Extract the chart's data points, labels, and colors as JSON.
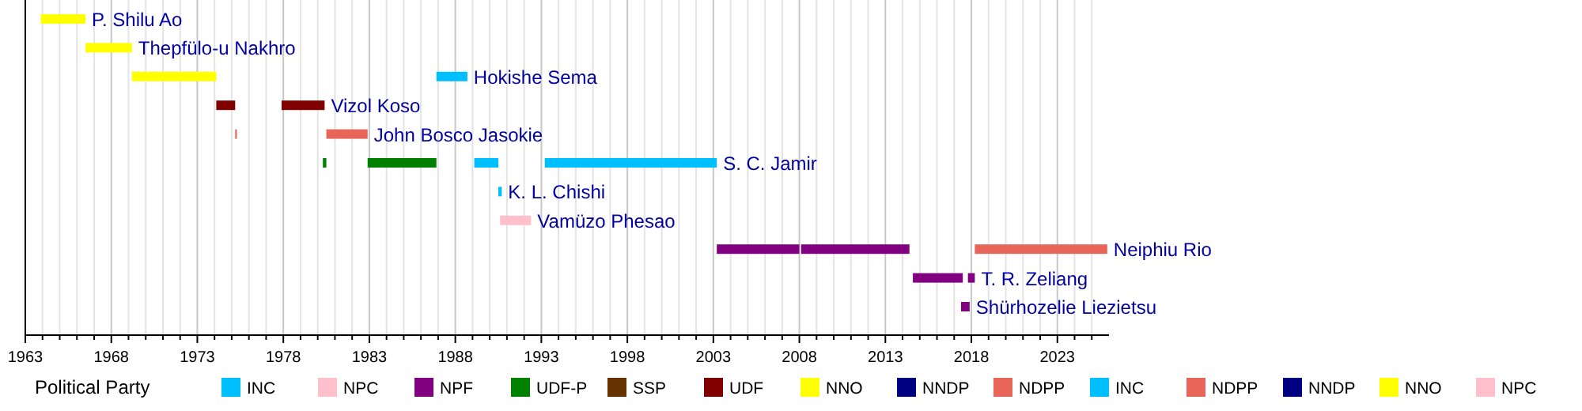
{
  "chart_data": {
    "type": "bar",
    "orientation": "horizontal",
    "legend": "bottom",
    "legend_title": "Political Party",
    "grid": "x",
    "categories": [
      "P. Shilu Ao",
      "Thepfülo-u Nakhro",
      "Hokishe Sema",
      "Vizol Koso",
      "John Bosco Jasokie",
      "S. C. Jamir",
      "K. L. Chishi",
      "Vamüzo Phesao",
      "Neiphiu Rio",
      "T. R. Zeliang",
      "Shürhozelie Liezietsu"
    ],
    "xlim": [
      1963,
      2026
    ],
    "xticks": [
      1963,
      {
        "value": 1964,
        "label": null
      },
      {
        "value": 1965,
        "label": null
      },
      {
        "value": 1966,
        "label": null
      },
      {
        "value": 1967,
        "label": null
      },
      1968,
      {
        "value": 1969,
        "label": null
      },
      {
        "value": 1970,
        "label": null
      },
      {
        "value": 1971,
        "label": null
      },
      {
        "value": 1972,
        "label": null
      },
      1973,
      {
        "value": 1974,
        "label": null
      },
      {
        "value": 1975,
        "label": null
      },
      {
        "value": 1976,
        "label": null
      },
      {
        "value": 1977,
        "label": null
      },
      1978,
      {
        "value": 1979,
        "label": null
      },
      {
        "value": 1980,
        "label": null
      },
      {
        "value": 1981,
        "label": null
      },
      {
        "value": 1982,
        "label": null
      },
      1983,
      {
        "value": 1984,
        "label": null
      },
      {
        "value": 1985,
        "label": null
      },
      {
        "value": 1986,
        "label": null
      },
      {
        "value": 1987,
        "label": null
      },
      1988,
      {
        "value": 1989,
        "label": null
      },
      {
        "value": 1990,
        "label": null
      },
      {
        "value": 1991,
        "label": null
      },
      {
        "value": 1992,
        "label": null
      },
      1993,
      {
        "value": 1994,
        "label": null
      },
      {
        "value": 1995,
        "label": null
      },
      {
        "value": 1996,
        "label": null
      },
      {
        "value": 1997,
        "label": null
      },
      1998,
      {
        "value": 1999,
        "label": null
      },
      {
        "value": 2000,
        "label": null
      },
      {
        "value": 2001,
        "label": null
      },
      {
        "value": 2002,
        "label": null
      },
      2003,
      {
        "value": 2004,
        "label": null
      },
      {
        "value": 2005,
        "label": null
      },
      {
        "value": 2006,
        "label": null
      },
      {
        "value": 2007,
        "label": null
      },
      2008,
      {
        "value": 2009,
        "label": null
      },
      {
        "value": 2010,
        "label": null
      },
      {
        "value": 2011,
        "label": null
      },
      {
        "value": 2012,
        "label": null
      },
      2013,
      {
        "value": 2014,
        "label": null
      },
      {
        "value": 2015,
        "label": null
      },
      {
        "value": 2016,
        "label": null
      },
      {
        "value": 2017,
        "label": null
      },
      2018,
      {
        "value": 2019,
        "label": null
      },
      {
        "value": 2020,
        "label": null
      },
      {
        "value": 2021,
        "label": null
      },
      {
        "value": 2022,
        "label": null
      },
      2023,
      {
        "value": 2024,
        "label": null
      },
      {
        "value": 2025,
        "label": null
      }
    ],
    "series": [
      {
        "name": "INC",
        "color": "#00bfff",
        "base": [
          null,
          null,
          1986.9,
          null,
          null,
          1989.1,
          1990.5,
          null,
          null,
          null,
          null
        ],
        "values": [
          null,
          null,
          1.8,
          null,
          null,
          1.4,
          0.2,
          null,
          null,
          null,
          null
        ]
      },
      {
        "name": "NPC",
        "color": "#ffc0cb",
        "base": [
          null,
          null,
          null,
          null,
          null,
          null,
          null,
          1990.6,
          null,
          null,
          null
        ],
        "values": [
          null,
          null,
          null,
          null,
          null,
          null,
          null,
          1.8,
          null,
          null,
          null
        ]
      },
      {
        "name": "NPF",
        "color": "#800080",
        "base": [
          null,
          null,
          null,
          null,
          null,
          null,
          null,
          null,
          2003.2,
          2014.6,
          2017.4
        ],
        "values": [
          null,
          null,
          null,
          null,
          null,
          null,
          null,
          null,
          4.8,
          2.9,
          0.5
        ]
      },
      {
        "name": "UDF-P",
        "color": "#008000",
        "base": [
          null,
          null,
          null,
          null,
          null,
          1980.3,
          null,
          null,
          null,
          null,
          null
        ],
        "values": [
          null,
          null,
          null,
          null,
          null,
          0.2,
          null,
          null,
          null,
          null,
          null
        ]
      },
      {
        "name": "SSP",
        "color": "#663300",
        "base": [
          null,
          null,
          null,
          null,
          null,
          null,
          null,
          null,
          null,
          null,
          null
        ],
        "values": [
          null,
          null,
          null,
          null,
          null,
          null,
          null,
          null,
          null,
          null,
          null
        ]
      },
      {
        "name": "UDF",
        "color": "#800000",
        "base": [
          null,
          null,
          null,
          1974.1,
          null,
          null,
          null,
          null,
          null,
          null,
          null
        ],
        "values": [
          null,
          null,
          null,
          1.1,
          null,
          null,
          null,
          null,
          null,
          null,
          null
        ]
      },
      {
        "name": "NNO",
        "color": "#ffff00",
        "base": [
          1963.9,
          1966.5,
          1969.2,
          null,
          null,
          null,
          null,
          null,
          null,
          null,
          null
        ],
        "values": [
          2.6,
          2.7,
          4.9,
          null,
          null,
          null,
          null,
          null,
          null,
          null,
          null
        ]
      },
      {
        "name": "NNDP",
        "color": "#000080",
        "base": [
          null,
          null,
          null,
          null,
          null,
          null,
          null,
          null,
          null,
          null,
          null
        ],
        "values": [
          null,
          null,
          null,
          null,
          null,
          null,
          null,
          null,
          null,
          null,
          null
        ]
      },
      {
        "name": "NDPP",
        "color": "#e8655a",
        "base": [
          null,
          null,
          null,
          null,
          1980.5,
          null,
          null,
          null,
          2018.2,
          null,
          null
        ],
        "values": [
          null,
          null,
          null,
          null,
          2.4,
          null,
          null,
          null,
          7.7,
          null,
          null
        ]
      },
      {
        "name": "INC",
        "color": "#00bfff",
        "base": [
          null,
          null,
          null,
          null,
          null,
          1993.2,
          null,
          null,
          null,
          null,
          null
        ],
        "values": [
          null,
          null,
          null,
          null,
          null,
          10.0,
          null,
          null,
          null,
          null,
          null
        ]
      },
      {
        "name": "NDPP",
        "color": "#e8655a",
        "base": [
          null,
          null,
          null,
          null,
          1975.2,
          null,
          null,
          null,
          null,
          null,
          null
        ],
        "values": [
          null,
          null,
          null,
          null,
          0.1,
          null,
          null,
          null,
          null,
          null,
          null
        ]
      },
      {
        "name": "NNDP",
        "color": "#000080",
        "base": [
          null,
          null,
          null,
          null,
          null,
          null,
          null,
          null,
          null,
          null,
          null
        ],
        "values": [
          null,
          null,
          null,
          null,
          null,
          null,
          null,
          null,
          null,
          null,
          null
        ]
      },
      {
        "name": "NNO",
        "color": "#ffff00",
        "base": [
          null,
          null,
          null,
          null,
          null,
          null,
          null,
          null,
          null,
          null,
          null
        ],
        "values": [
          null,
          null,
          null,
          null,
          null,
          null,
          null,
          null,
          null,
          null,
          null
        ]
      },
      {
        "name": "NPC",
        "color": "#ffc0cb",
        "base": [
          null,
          null,
          null,
          null,
          null,
          null,
          null,
          null,
          null,
          null,
          null
        ],
        "values": [
          null,
          null,
          null,
          null,
          null,
          null,
          null,
          null,
          null,
          null,
          null
        ]
      },
      {
        "color": "#800080",
        "base": [
          null,
          null,
          null,
          null,
          null,
          null,
          null,
          null,
          2008.1,
          2017.8,
          null
        ],
        "values": [
          null,
          null,
          null,
          null,
          null,
          null,
          null,
          null,
          6.3,
          0.4,
          null
        ]
      },
      {
        "color": "#008000",
        "base": [
          null,
          null,
          null,
          null,
          null,
          1982.9,
          null,
          null,
          null,
          null,
          null
        ],
        "values": [
          null,
          null,
          null,
          null,
          null,
          4.0,
          null,
          null,
          null,
          null,
          null
        ]
      },
      {
        "color": "#800000",
        "base": [
          null,
          null,
          null,
          1977.9,
          null,
          null,
          null,
          null,
          null,
          null,
          null
        ],
        "values": [
          null,
          null,
          null,
          2.5,
          null,
          null,
          null,
          null,
          null,
          null,
          null
        ]
      }
    ]
  }
}
